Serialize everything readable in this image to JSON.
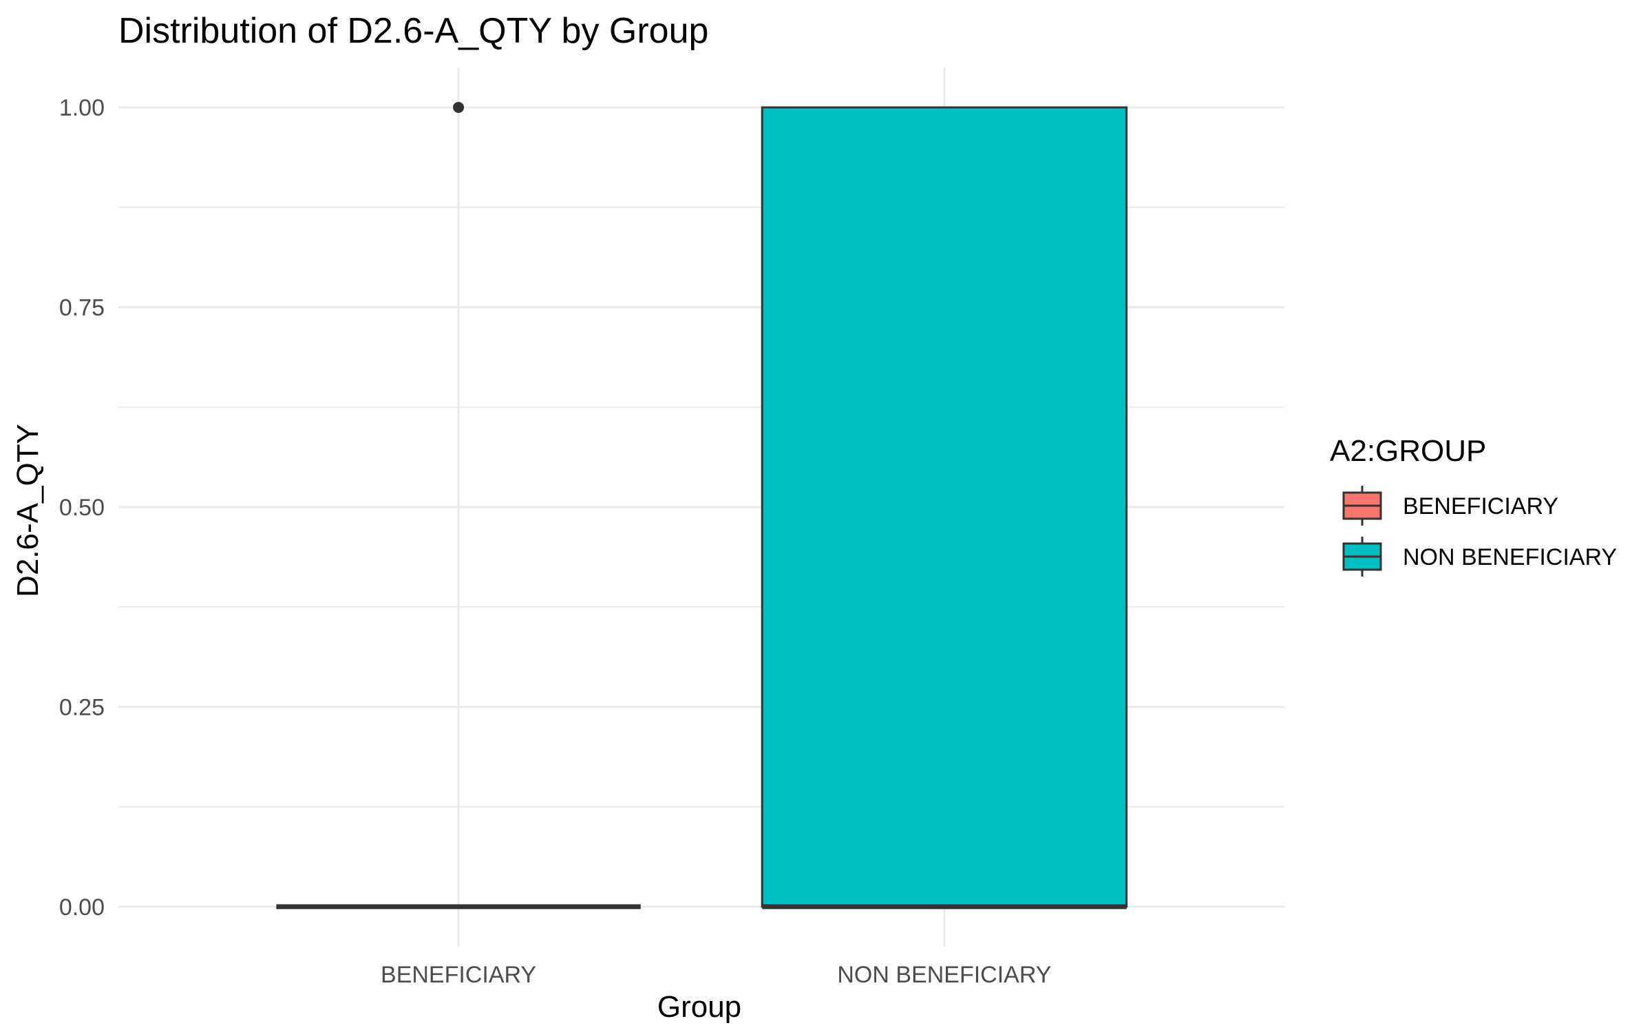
{
  "chart_data": {
    "type": "boxplot",
    "title": "Distribution of D2.6-A_QTY by Group",
    "xlabel": "Group",
    "ylabel": "D2.6-A_QTY",
    "categories": [
      "BENEFICIARY",
      "NON BENEFICIARY"
    ],
    "ylim": [
      -0.05,
      1.05
    ],
    "yticks": [
      0,
      0.25,
      0.5,
      0.75,
      1
    ],
    "ytick_labels": [
      "0.00",
      "0.25",
      "0.50",
      "0.75",
      "1.00"
    ],
    "grid": true,
    "legend": {
      "title": "A2:GROUP",
      "position": "right",
      "entries": [
        "BENEFICIARY",
        "NON BENEFICIARY"
      ]
    },
    "colors": {
      "BENEFICIARY": "#F8766D",
      "NON BENEFICIARY": "#00BFC4",
      "outline": "#333333"
    },
    "boxes": [
      {
        "group": "BENEFICIARY",
        "min": 0,
        "q1": 0,
        "median": 0,
        "q3": 0,
        "max": 0,
        "outliers": [
          1
        ]
      },
      {
        "group": "NON BENEFICIARY",
        "min": 0,
        "q1": 0,
        "median": 0,
        "q3": 1,
        "max": 1,
        "outliers": []
      }
    ]
  }
}
